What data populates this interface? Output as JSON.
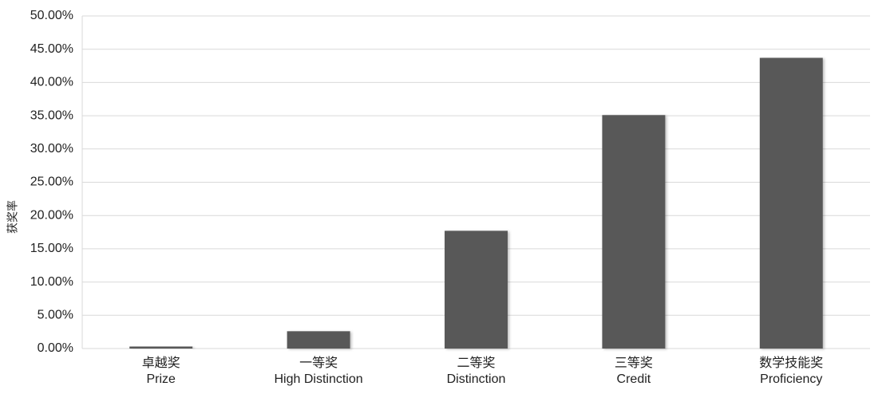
{
  "chart_data": {
    "type": "bar",
    "y_label": "获奖率",
    "categories": [
      "卓越奖\nPrize",
      "一等奖\nHigh Distinction",
      "二等奖\nDistinction",
      "三等奖\nCredit",
      "数学技能奖\nProficiency"
    ],
    "values": [
      0.3,
      2.6,
      17.7,
      35.1,
      43.7
    ],
    "color": "#595959",
    "ylim": [
      0,
      50
    ],
    "yticks": [
      {
        "value": 0,
        "label": "0.00%"
      },
      {
        "value": 5,
        "label": "5.00%"
      },
      {
        "value": 10,
        "label": "10.00%"
      },
      {
        "value": 15,
        "label": "15.00%"
      },
      {
        "value": 20,
        "label": "20.00%"
      },
      {
        "value": 25,
        "label": "25.00%"
      },
      {
        "value": 30,
        "label": "30.00%"
      },
      {
        "value": 35,
        "label": "35.00%"
      },
      {
        "value": 40,
        "label": "40.00%"
      },
      {
        "value": 45,
        "label": "45.00%"
      },
      {
        "value": 50,
        "label": "50.00%"
      }
    ],
    "grid": true
  }
}
